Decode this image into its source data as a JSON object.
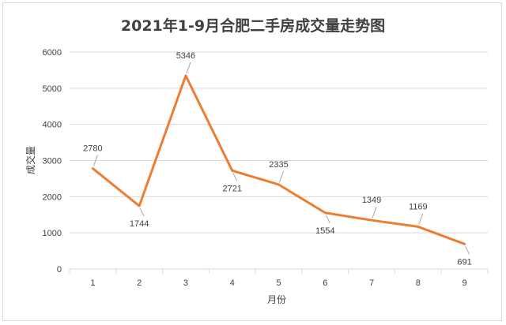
{
  "chart_data": {
    "type": "line",
    "title": "2021年1-9月合肥二手房成交量走势图",
    "xlabel": "月份",
    "ylabel": "成交量",
    "categories": [
      "1",
      "2",
      "3",
      "4",
      "5",
      "6",
      "7",
      "8",
      "9"
    ],
    "series": [
      {
        "values": [
          2780,
          1744,
          5346,
          2721,
          2335,
          1554,
          1349,
          1169,
          691
        ],
        "color": "#ED7D31"
      }
    ],
    "y_ticks": [
      "0",
      "1000",
      "2000",
      "3000",
      "4000",
      "5000",
      "6000"
    ],
    "ylim": [
      0,
      6000
    ],
    "grid": true,
    "legend": false,
    "data_labels": true
  }
}
